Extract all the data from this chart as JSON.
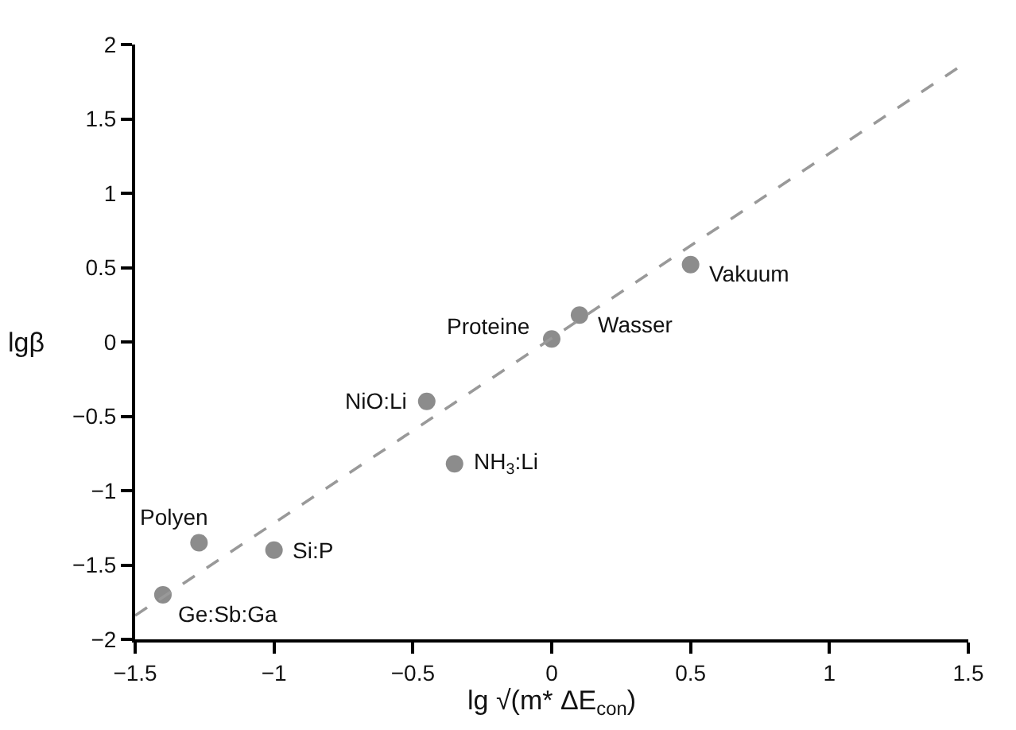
{
  "chart_data": {
    "type": "scatter",
    "xlabel": "lg √(m* ΔE$_{con}$)",
    "ylabel": "lgβ",
    "series": [
      {
        "color": "#8c8c8c",
        "marker": "circle",
        "x": [
          0.5,
          0.1,
          0.0,
          -0.45,
          -0.35,
          -1.27,
          -1.0,
          -1.4
        ],
        "values": [
          0.52,
          0.18,
          0.02,
          -0.4,
          -0.82,
          -1.35,
          -1.4,
          -1.7
        ]
      },
      {
        "type": "line",
        "color": "#999999",
        "line_style": "dashed",
        "marker": "none",
        "x": [
          -1.5,
          1.5
        ],
        "values": [
          -1.84,
          1.89
        ]
      }
    ],
    "annotations": [
      {
        "text": "Vakuum",
        "x": 0.5,
        "y": 0.52
      },
      {
        "text": "Wasser",
        "x": 0.1,
        "y": 0.18
      },
      {
        "text": "Proteine",
        "x": 0.0,
        "y": 0.02
      },
      {
        "text": "NiO:Li",
        "x": -0.45,
        "y": -0.4
      },
      {
        "text": "NH$_{3}$:Li",
        "x": -0.35,
        "y": -0.82
      },
      {
        "text": "Polyen",
        "x": -1.27,
        "y": -1.35
      },
      {
        "text": "Si:P",
        "x": -1.0,
        "y": -1.4
      },
      {
        "text": "Ge:Sb:Ga",
        "x": -1.4,
        "y": -1.7
      }
    ],
    "xlim": [
      -1.5,
      1.5
    ],
    "xticks": [
      {
        "value": -1.5,
        "label": "−1.5"
      },
      {
        "value": -1,
        "label": "−1"
      },
      {
        "value": -0.5,
        "label": "−0.5"
      },
      0,
      0.5,
      1,
      1.5
    ],
    "ylim": [
      -2,
      2
    ],
    "yticks": [
      {
        "value": -2,
        "label": "−2"
      },
      {
        "value": -1.5,
        "label": "−1.5"
      },
      {
        "value": -1,
        "label": "−1"
      },
      {
        "value": -0.5,
        "label": "−0.5"
      },
      0,
      0.5,
      1,
      1.5,
      2
    ]
  }
}
